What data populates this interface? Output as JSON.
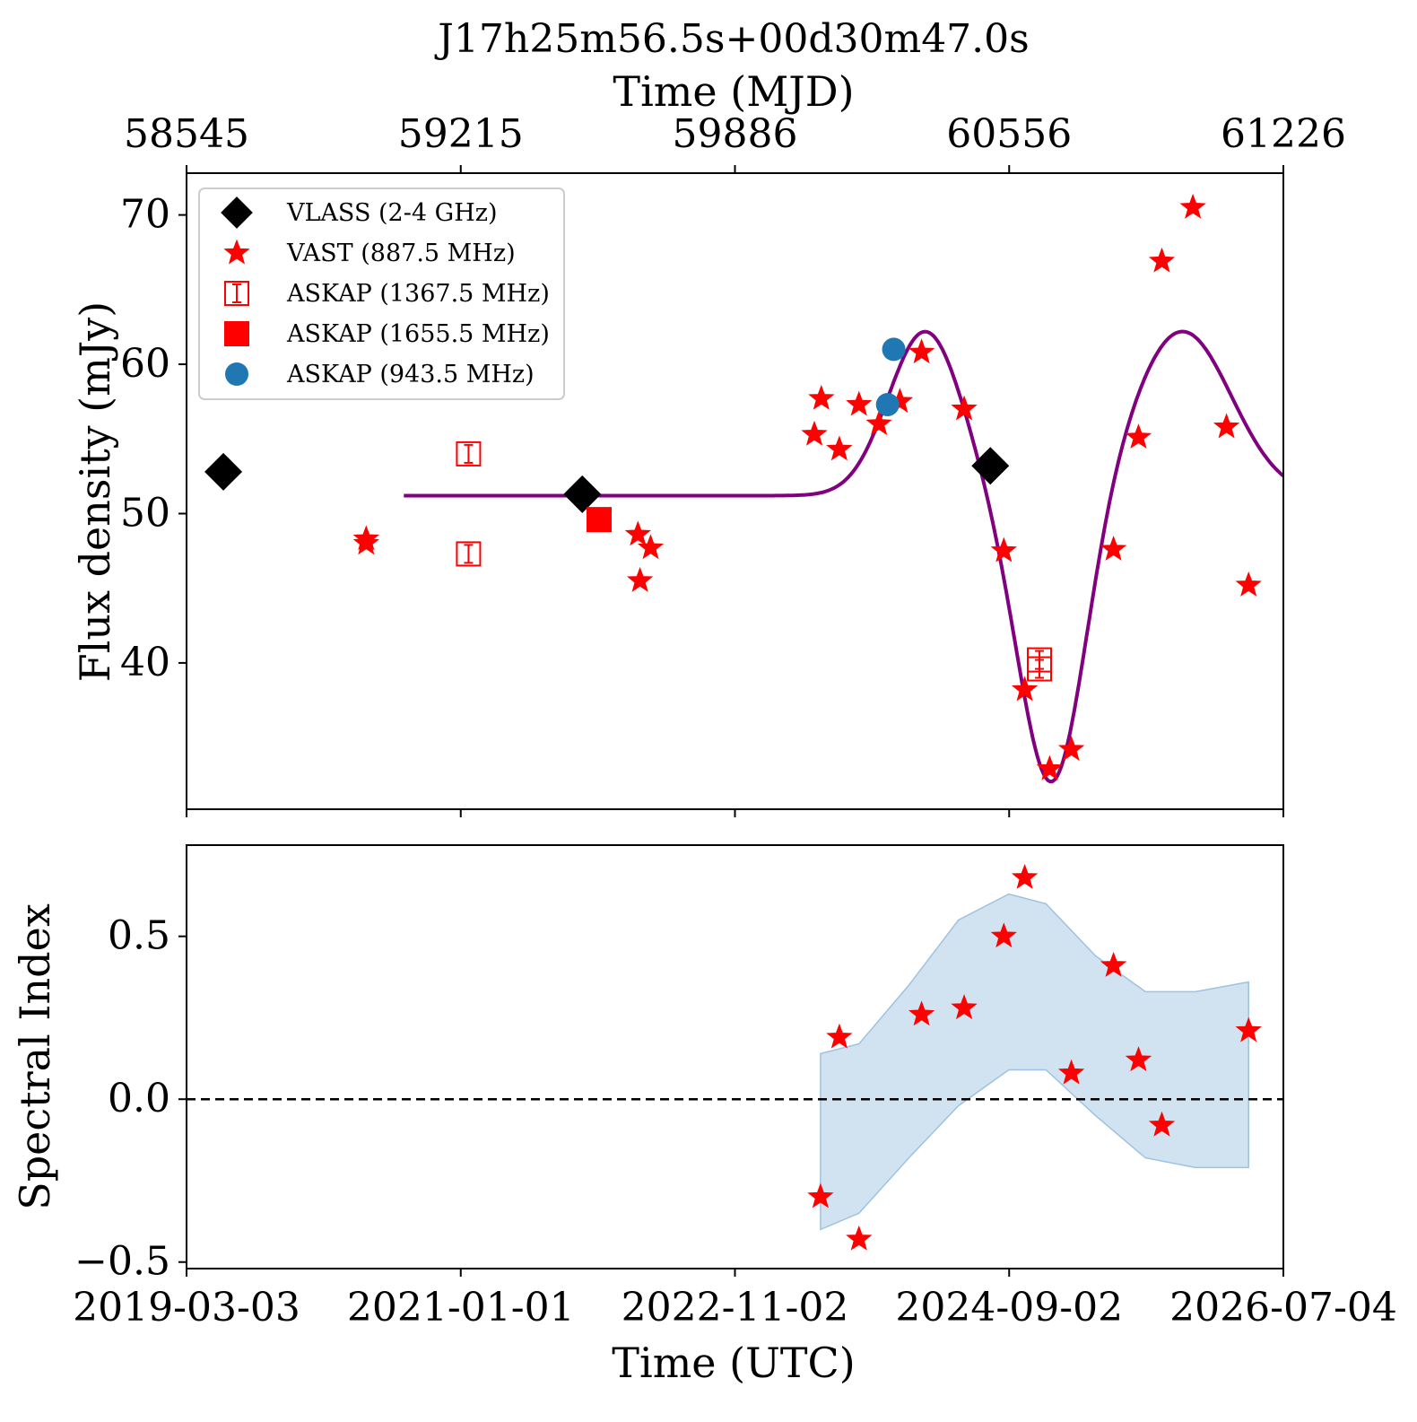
{
  "chart_data": [
    {
      "type": "scatter",
      "title": "J17h25m56.5s+00d30m47.0s",
      "top_xlabel": "Time (MJD)",
      "top_xticks": [
        "58545",
        "59215",
        "59886",
        "60556",
        "61226"
      ],
      "ylabel": "Flux density (mJy)",
      "ylim": [
        30.2,
        72.8
      ],
      "yticks": [
        {
          "value": 40,
          "label": "40"
        },
        {
          "value": 50,
          "label": "50"
        },
        {
          "value": 60,
          "label": "60"
        },
        {
          "value": 70,
          "label": "70"
        }
      ],
      "legend_position": "upper-left",
      "series": [
        {
          "name": "VLASS (2-4 GHz)",
          "marker": "diamond",
          "color": "#000000",
          "points": [
            {
              "x": "2019-06-01",
              "y": 52.8
            },
            {
              "x": "2021-10-25",
              "y": 51.3
            },
            {
              "x": "2024-07-18",
              "y": 53.2
            }
          ]
        },
        {
          "name": "VAST (887.5 MHz)",
          "marker": "star",
          "color": "#ff0000",
          "points": [
            {
              "x": "2020-05-15",
              "y": 48.3
            },
            {
              "x": "2020-05-15",
              "y": 48.0
            },
            {
              "x": "2022-03-10",
              "y": 48.6
            },
            {
              "x": "2022-03-15",
              "y": 45.5
            },
            {
              "x": "2022-04-10",
              "y": 47.7
            },
            {
              "x": "2023-05-15",
              "y": 55.3
            },
            {
              "x": "2023-06-01",
              "y": 57.7
            },
            {
              "x": "2023-07-15",
              "y": 54.3
            },
            {
              "x": "2023-09-01",
              "y": 57.3
            },
            {
              "x": "2023-10-20",
              "y": 56.0
            },
            {
              "x": "2023-12-10",
              "y": 57.5
            },
            {
              "x": "2024-02-01",
              "y": 60.8
            },
            {
              "x": "2024-05-15",
              "y": 57.0
            },
            {
              "x": "2024-08-20",
              "y": 47.5
            },
            {
              "x": "2024-10-10",
              "y": 38.2
            },
            {
              "x": "2024-12-10",
              "y": 32.9
            },
            {
              "x": "2025-02-01",
              "y": 34.2
            },
            {
              "x": "2025-05-15",
              "y": 47.6
            },
            {
              "x": "2025-07-15",
              "y": 55.1
            },
            {
              "x": "2025-09-10",
              "y": 66.9
            },
            {
              "x": "2025-11-25",
              "y": 70.5
            },
            {
              "x": "2026-02-15",
              "y": 55.8
            },
            {
              "x": "2026-04-10",
              "y": 45.2
            }
          ]
        },
        {
          "name": "ASKAP (1367.5 MHz)",
          "marker": "open-square",
          "color": "#ff0000",
          "points": [
            {
              "x": "2021-01-20",
              "y": 54.0
            },
            {
              "x": "2021-01-20",
              "y": 47.3
            },
            {
              "x": "2024-11-15",
              "y": 40.2
            },
            {
              "x": "2024-11-15",
              "y": 39.6
            }
          ]
        },
        {
          "name": "ASKAP (1655.5 MHz)",
          "marker": "square",
          "color": "#ff0000",
          "points": [
            {
              "x": "2021-12-05",
              "y": 49.6
            }
          ]
        },
        {
          "name": "ASKAP (943.5 MHz)",
          "marker": "circle",
          "color": "#1f77b4",
          "points": [
            {
              "x": "2023-11-10",
              "y": 57.3
            },
            {
              "x": "2023-11-25",
              "y": 61.0
            }
          ]
        }
      ],
      "model_curve": {
        "color": "#800080",
        "x_range": [
          "2020-08-15",
          "2026-07-04"
        ],
        "baseline": 51.2,
        "components": [
          {
            "center": "2024-02-10",
            "amplitude": 11.0,
            "sigma_days": 90
          },
          {
            "center": "2024-12-15",
            "amplitude": -19.5,
            "sigma_days": 80
          },
          {
            "center": "2025-10-30",
            "amplitude": 11.0,
            "sigma_days": 120
          }
        ]
      }
    },
    {
      "type": "scatter",
      "ylabel": "Spectral Index",
      "xlabel": "Time (UTC)",
      "ylim": [
        -0.52,
        0.78
      ],
      "yticks": [
        {
          "value": -0.5,
          "label": "−0.5"
        },
        {
          "value": 0.0,
          "label": "0.0"
        },
        {
          "value": 0.5,
          "label": "0.5"
        }
      ],
      "xticks": [
        {
          "value": "2019-03-03",
          "label": "2019-03-03"
        },
        {
          "value": "2021-01-01",
          "label": "2021-01-01"
        },
        {
          "value": "2022-11-02",
          "label": "2022-11-02"
        },
        {
          "value": "2024-09-02",
          "label": "2024-09-02"
        },
        {
          "value": "2026-07-04",
          "label": "2026-07-04"
        }
      ],
      "xlim": [
        "2019-03-03",
        "2026-07-04"
      ],
      "reference_line": {
        "y": 0.0,
        "style": "dashed",
        "color": "#000000"
      },
      "series": [
        {
          "marker": "star",
          "color": "#ff0000",
          "points": [
            {
              "x": "2023-05-30",
              "y": -0.3
            },
            {
              "x": "2023-07-15",
              "y": 0.19
            },
            {
              "x": "2023-09-01",
              "y": -0.43
            },
            {
              "x": "2024-02-01",
              "y": 0.26
            },
            {
              "x": "2024-05-15",
              "y": 0.28
            },
            {
              "x": "2024-08-20",
              "y": 0.5
            },
            {
              "x": "2024-10-10",
              "y": 0.68
            },
            {
              "x": "2025-02-01",
              "y": 0.08
            },
            {
              "x": "2025-05-15",
              "y": 0.41
            },
            {
              "x": "2025-07-15",
              "y": 0.12
            },
            {
              "x": "2025-09-10",
              "y": -0.08
            },
            {
              "x": "2026-04-10",
              "y": 0.21
            }
          ]
        }
      ],
      "band": {
        "color": "#c6dcec",
        "edge_color": "#9ec2df",
        "upper": [
          {
            "x": "2023-05-30",
            "y": 0.14
          },
          {
            "x": "2023-09-01",
            "y": 0.17
          },
          {
            "x": "2024-01-01",
            "y": 0.35
          },
          {
            "x": "2024-05-01",
            "y": 0.55
          },
          {
            "x": "2024-09-01",
            "y": 0.63
          },
          {
            "x": "2024-12-01",
            "y": 0.6
          },
          {
            "x": "2025-04-01",
            "y": 0.44
          },
          {
            "x": "2025-08-01",
            "y": 0.33
          },
          {
            "x": "2025-12-01",
            "y": 0.33
          },
          {
            "x": "2026-04-10",
            "y": 0.36
          }
        ],
        "lower": [
          {
            "x": "2023-05-30",
            "y": -0.4
          },
          {
            "x": "2023-09-01",
            "y": -0.35
          },
          {
            "x": "2024-01-01",
            "y": -0.18
          },
          {
            "x": "2024-05-01",
            "y": -0.02
          },
          {
            "x": "2024-09-01",
            "y": 0.09
          },
          {
            "x": "2024-12-01",
            "y": 0.09
          },
          {
            "x": "2025-04-01",
            "y": -0.05
          },
          {
            "x": "2025-08-01",
            "y": -0.18
          },
          {
            "x": "2025-12-01",
            "y": -0.21
          },
          {
            "x": "2026-04-10",
            "y": -0.21
          }
        ]
      }
    }
  ]
}
